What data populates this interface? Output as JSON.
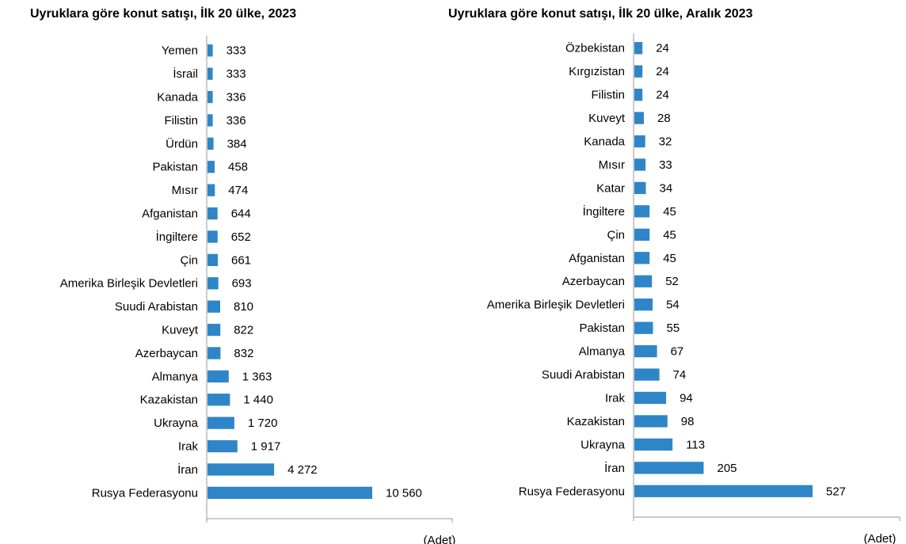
{
  "chart_data": [
    {
      "type": "bar",
      "orientation": "horizontal",
      "title": "Uyruklara göre konut satışı, İlk 20 ülke, 2023",
      "unit_label": "(Adet)",
      "color": "#2E86C8",
      "categories": [
        "Yemen",
        "İsrail",
        "Kanada",
        "Filistin",
        "Ürdün",
        "Pakistan",
        "Mısır",
        "Afganistan",
        "İngiltere",
        "Çin",
        "Amerika Birleşik Devletleri",
        "Suudi Arabistan",
        "Kuveyt",
        "Azerbaycan",
        "Almanya",
        "Kazakistan",
        "Ukrayna",
        "Irak",
        "İran",
        "Rusya Federasyonu"
      ],
      "values": [
        333,
        333,
        336,
        336,
        384,
        458,
        474,
        644,
        652,
        661,
        693,
        810,
        822,
        832,
        1363,
        1440,
        1720,
        1917,
        4272,
        10560
      ],
      "value_labels": [
        "333",
        "333",
        "336",
        "336",
        "384",
        "458",
        "474",
        "644",
        "652",
        "661",
        "693",
        "810",
        "822",
        "832",
        "1 363",
        "1 440",
        "1 720",
        "1 917",
        "4 272",
        "10 560"
      ]
    },
    {
      "type": "bar",
      "orientation": "horizontal",
      "title": "Uyruklara göre konut satışı, İlk 20 ülke, Aralık 2023",
      "unit_label": "(Adet)",
      "color": "#2E86C8",
      "categories": [
        "Özbekistan",
        "Kırgızistan",
        "Filistin",
        "Kuveyt",
        "Kanada",
        "Mısır",
        "Katar",
        "İngiltere",
        "Çin",
        "Afganistan",
        "Azerbaycan",
        "Amerika Birleşik Devletleri",
        "Pakistan",
        "Almanya",
        "Suudi Arabistan",
        "Irak",
        "Kazakistan",
        "Ukrayna",
        "İran",
        "Rusya Federasyonu"
      ],
      "values": [
        24,
        24,
        24,
        28,
        32,
        33,
        34,
        45,
        45,
        45,
        52,
        54,
        55,
        67,
        74,
        94,
        98,
        113,
        205,
        527
      ],
      "value_labels": [
        "24",
        "24",
        "24",
        "28",
        "32",
        "33",
        "34",
        "45",
        "45",
        "45",
        "52",
        "54",
        "55",
        "67",
        "74",
        "94",
        "98",
        "113",
        "205",
        "527"
      ]
    }
  ]
}
